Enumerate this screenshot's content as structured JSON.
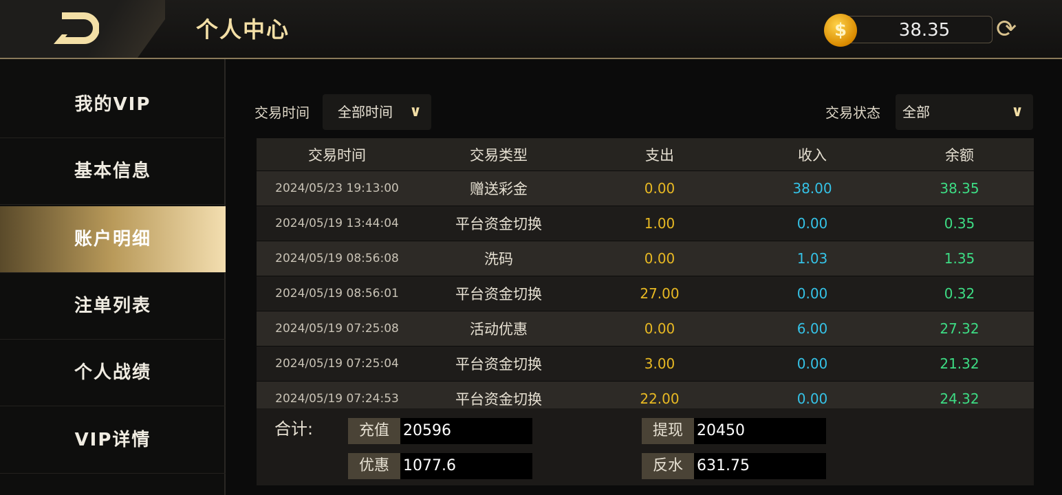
{
  "header": {
    "title": "个人中心",
    "balance": "38.35",
    "coin_icon": "$"
  },
  "sidebar": {
    "items": [
      {
        "label": "我的VIP"
      },
      {
        "label": "基本信息"
      },
      {
        "label": "账户明细",
        "active": true
      },
      {
        "label": "注单列表"
      },
      {
        "label": "个人战绩"
      },
      {
        "label": "VIP详情"
      }
    ]
  },
  "filters": {
    "time_label": "交易时间",
    "time_value": "全部时间",
    "status_label": "交易状态",
    "status_value": "全部"
  },
  "table": {
    "columns": [
      "交易时间",
      "交易类型",
      "支出",
      "收入",
      "余额"
    ],
    "rows": [
      [
        "2024/05/23 19:13:00",
        "赠送彩金",
        "0.00",
        "38.00",
        "38.35"
      ],
      [
        "2024/05/19 13:44:04",
        "平台资金切换",
        "1.00",
        "0.00",
        "0.35"
      ],
      [
        "2024/05/19 08:56:08",
        "洗码",
        "0.00",
        "1.03",
        "1.35"
      ],
      [
        "2024/05/19 08:56:01",
        "平台资金切换",
        "27.00",
        "0.00",
        "0.32"
      ],
      [
        "2024/05/19 07:25:08",
        "活动优惠",
        "0.00",
        "6.00",
        "27.32"
      ],
      [
        "2024/05/19 07:25:04",
        "平台资金切换",
        "3.00",
        "0.00",
        "21.32"
      ],
      [
        "2024/05/19 07:24:53",
        "平台资金切换",
        "22.00",
        "0.00",
        "24.32"
      ]
    ]
  },
  "summary": {
    "label": "合计:",
    "fields": [
      {
        "key": "充值",
        "value": "20596"
      },
      {
        "key": "提现",
        "value": "20450"
      },
      {
        "key": "优惠",
        "value": "1077.6"
      },
      {
        "key": "反水",
        "value": "631.75"
      }
    ]
  },
  "colors": {
    "expense": "#e8b923",
    "income": "#35c2e6",
    "balance": "#3ddc84",
    "accent": "#f3dfa6"
  }
}
